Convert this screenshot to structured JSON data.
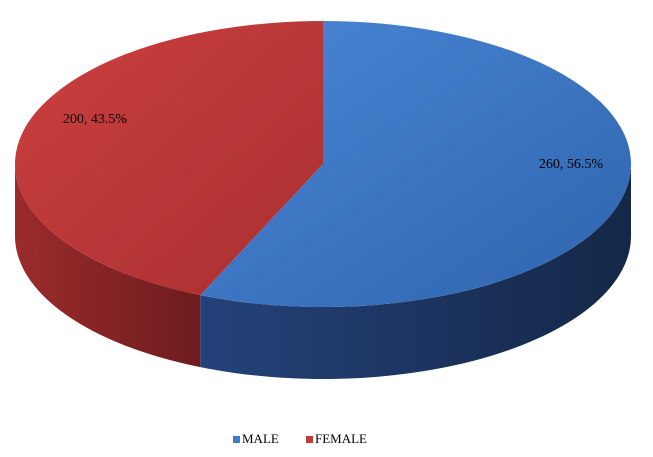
{
  "chart_data": {
    "type": "pie",
    "style": "3d",
    "categories": [
      "MALE",
      "FEMALE"
    ],
    "values": [
      260,
      200
    ],
    "percentages": [
      "56.5%",
      "43.5%"
    ],
    "data_labels": [
      "260, 56.5%",
      "200, 43.5%"
    ],
    "colors": {
      "MALE": "#3f79c5",
      "MALE_side": "#1d3560",
      "FEMALE": "#c23b3b",
      "FEMALE_side": "#7a2223"
    },
    "legend": {
      "placement": "bottom",
      "entries": [
        "MALE",
        "FEMALE"
      ]
    },
    "title": ""
  }
}
